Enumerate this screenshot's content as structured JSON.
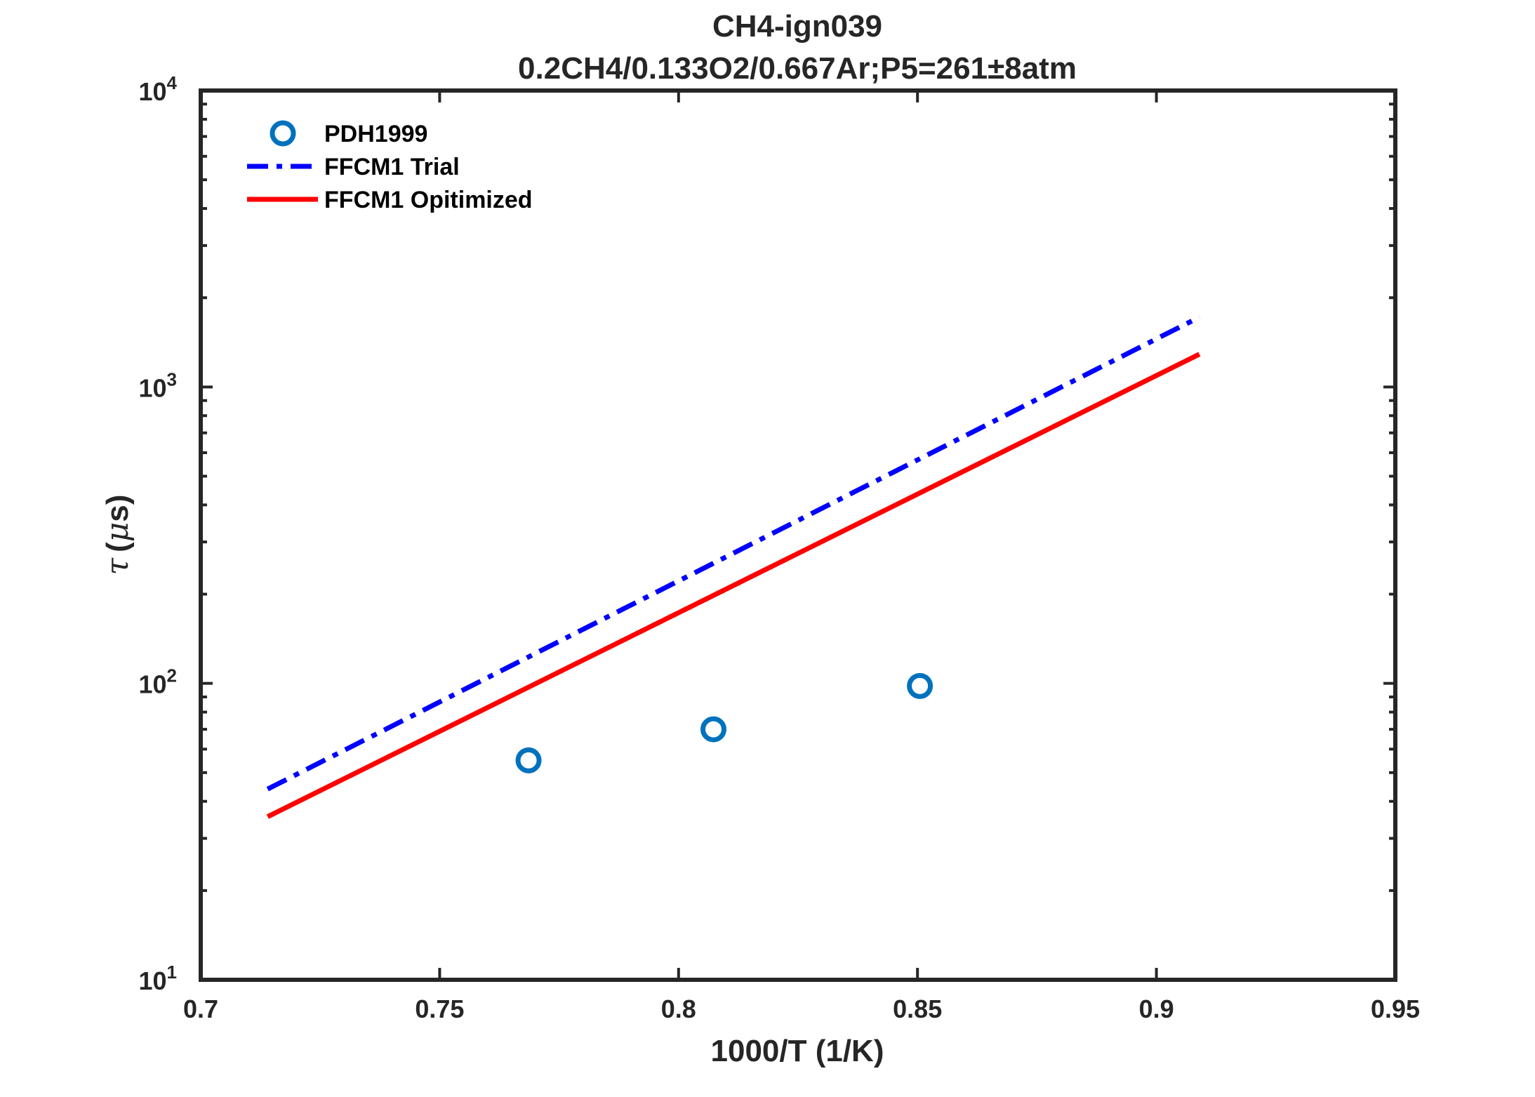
{
  "chart_data": {
    "type": "line",
    "title": "CH4-ign039",
    "subtitle": "0.2CH4/0.133O2/0.667Ar;P5=261±8atm",
    "xlabel": "1000/T (1/K)",
    "ylabel_symbol": "τ",
    "ylabel_unit_prefix": "μ",
    "ylabel_unit": "s",
    "xlim": [
      0.7,
      0.95
    ],
    "ylim": [
      10,
      10000
    ],
    "yscale": "log",
    "grid": false,
    "legend_position": "top-left",
    "x_ticks": [
      "0.7",
      "0.75",
      "0.8",
      "0.85",
      "0.9",
      "0.95"
    ],
    "y_ticks": [
      {
        "base": "10",
        "exp": "1"
      },
      {
        "base": "10",
        "exp": "2"
      },
      {
        "base": "10",
        "exp": "3"
      },
      {
        "base": "10",
        "exp": "4"
      }
    ],
    "series": [
      {
        "name": "PDH1999",
        "kind": "scatter",
        "marker": "open-circle",
        "color": "#0072BD",
        "x": [
          0.7686,
          0.8073,
          0.8505
        ],
        "y": [
          55,
          70,
          98
        ]
      },
      {
        "name": "FFCM1 Trial",
        "kind": "line",
        "style": "dash-dot",
        "color": "#0000FF",
        "x": [
          0.714,
          0.909
        ],
        "y": [
          44,
          1720
        ]
      },
      {
        "name": "FFCM1 Opitimized",
        "kind": "line",
        "style": "solid",
        "color": "#FF0000",
        "x": [
          0.714,
          0.909
        ],
        "y": [
          35.5,
          1290
        ]
      }
    ]
  }
}
